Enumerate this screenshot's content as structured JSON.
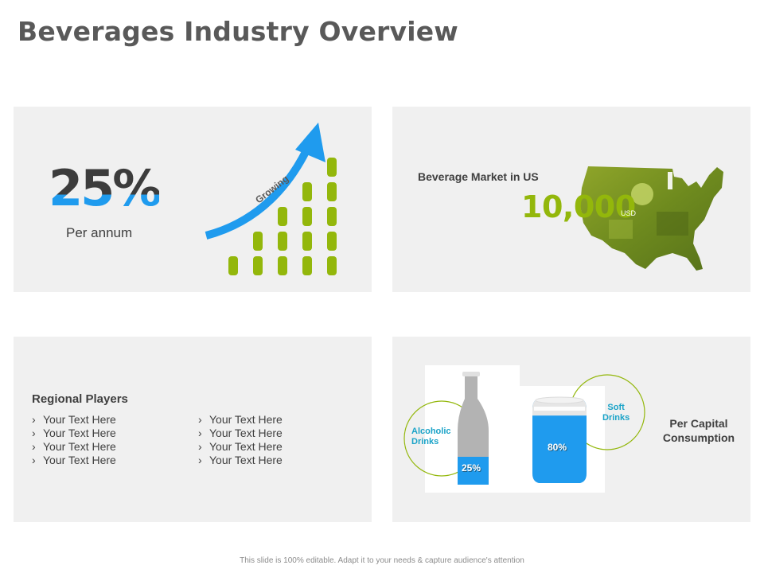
{
  "title": "Beverages Industry Overview",
  "growth": {
    "percent": "25%",
    "caption": "Per annum",
    "arrow_label": "Growing",
    "bars_level": [
      1,
      2,
      3,
      4,
      5
    ]
  },
  "market": {
    "title": "Beverage Market in US",
    "value": "10,000",
    "unit": "USD"
  },
  "players": {
    "heading": "Regional Players",
    "col1": [
      "Your Text Here",
      "Your Text Here",
      "Your Text Here",
      "Your Text Here"
    ],
    "col2": [
      "Your Text Here",
      "Your Text Here",
      "Your Text Here",
      "Your Text Here"
    ]
  },
  "consumption": {
    "alcoholic_label_1": "Alcoholic",
    "alcoholic_label_2": "Drinks",
    "soft_label_1": "Soft",
    "soft_label_2": "Drinks",
    "bottle_pct": "25%",
    "can_pct": "80%",
    "bottle_fill": 0.25,
    "can_fill": 0.8,
    "caption_1": "Per Capital",
    "caption_2": "Consumption"
  },
  "footer": "This slide is 100% editable. Adapt it to your needs & capture audience's attention",
  "colors": {
    "blue": "#1f9bee",
    "green": "#93b70b",
    "teal": "#1aa3c8",
    "panel": "#f0f0f0"
  }
}
